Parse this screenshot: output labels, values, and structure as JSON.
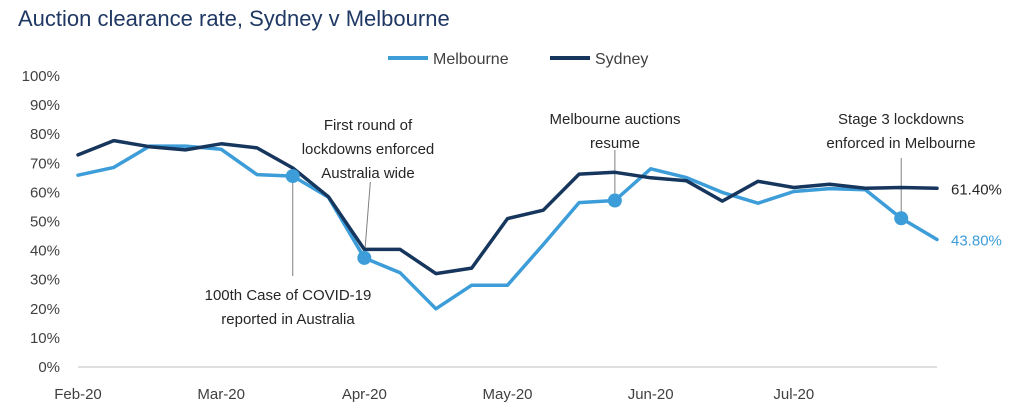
{
  "chart_data": {
    "type": "line",
    "title": "Auction clearance rate, Sydney v Melbourne",
    "xlabel": "",
    "ylabel": "",
    "ylim": [
      0,
      100
    ],
    "y_ticks": [
      "0%",
      "10%",
      "20%",
      "30%",
      "40%",
      "50%",
      "60%",
      "70%",
      "80%",
      "90%",
      "100%"
    ],
    "x_ticks": [
      {
        "label": "Feb-20",
        "index": 0
      },
      {
        "label": "Mar-20",
        "index": 4
      },
      {
        "label": "Apr-20",
        "index": 8
      },
      {
        "label": "May-20",
        "index": 12
      },
      {
        "label": "Jun-20",
        "index": 16
      },
      {
        "label": "Jul-20",
        "index": 20
      }
    ],
    "legend_position": "top-right",
    "series": [
      {
        "name": "Melbourne",
        "color": "#3d9dd9",
        "values": [
          65.9,
          68.6,
          75.9,
          75.9,
          74.8,
          66.1,
          65.6,
          58.3,
          37.5,
          32.4,
          20.0,
          28.1,
          28.1,
          42.1,
          56.5,
          57.2,
          68.1,
          65.1,
          60.0,
          56.3,
          60.3,
          61.3,
          60.9,
          51.1,
          43.8
        ],
        "end_label": "43.80%",
        "markers": [
          6,
          8,
          15,
          23
        ]
      },
      {
        "name": "Sydney",
        "color": "#17365d",
        "values": [
          72.9,
          77.8,
          75.7,
          74.6,
          76.7,
          75.3,
          68.4,
          58.5,
          40.4,
          40.4,
          32.1,
          34.0,
          51.0,
          53.9,
          66.3,
          66.9,
          65.0,
          64.0,
          57.0,
          63.8,
          61.7,
          62.8,
          61.4,
          61.7,
          61.4
        ],
        "end_label": "61.40%"
      }
    ],
    "annotations": [
      {
        "lines": [
          "100th Case of COVID-19",
          "reported in Australia"
        ],
        "series": "Melbourne",
        "index": 6,
        "placement": "below"
      },
      {
        "lines": [
          "First round of",
          "lockdowns enforced",
          "Australia wide"
        ],
        "series": "Melbourne",
        "index": 8,
        "placement": "above"
      },
      {
        "lines": [
          "Melbourne auctions",
          "resume"
        ],
        "series": "Melbourne",
        "index": 15,
        "placement": "above"
      },
      {
        "lines": [
          "Stage 3 lockdowns",
          "enforced in Melbourne"
        ],
        "series": "Melbourne",
        "index": 23,
        "placement": "above"
      }
    ]
  }
}
